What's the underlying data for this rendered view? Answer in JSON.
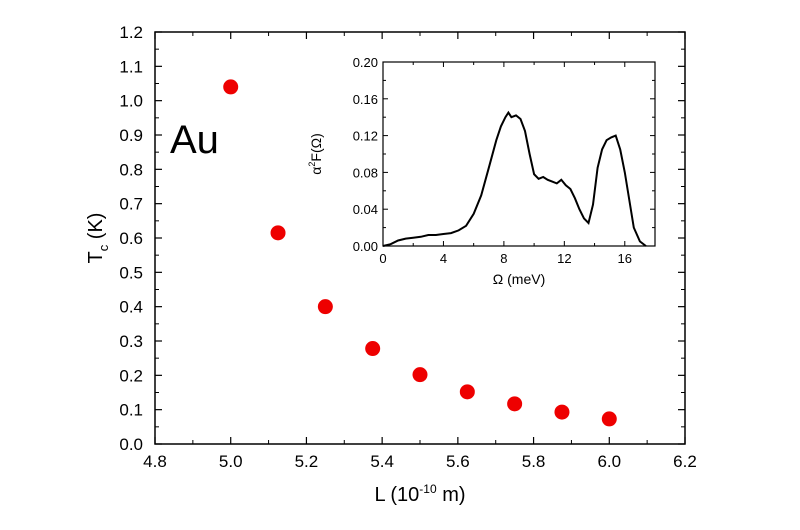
{
  "chart_data": [
    {
      "type": "scatter",
      "title": "",
      "annotation": "Au",
      "xlabel": {
        "main": "L  (10",
        "sup": "-10",
        "tail": " m)"
      },
      "ylabel": {
        "main": "T",
        "sub": "c",
        "tail": "  (K)"
      },
      "xlim": [
        4.8,
        6.2
      ],
      "ylim": [
        0.0,
        1.2
      ],
      "xticks": [
        "4.8",
        "5.0",
        "5.2",
        "5.4",
        "5.6",
        "5.8",
        "6.0",
        "6.2"
      ],
      "yticks": [
        "0.0",
        "0.1",
        "0.2",
        "0.3",
        "0.4",
        "0.5",
        "0.6",
        "0.7",
        "0.8",
        "0.9",
        "1.0",
        "1.1",
        "1.2"
      ],
      "marker_color": "#ee0000",
      "points": [
        {
          "x": 5.0,
          "y": 1.04
        },
        {
          "x": 5.125,
          "y": 0.615
        },
        {
          "x": 5.25,
          "y": 0.4
        },
        {
          "x": 5.375,
          "y": 0.278
        },
        {
          "x": 5.5,
          "y": 0.202
        },
        {
          "x": 5.625,
          "y": 0.152
        },
        {
          "x": 5.75,
          "y": 0.117
        },
        {
          "x": 5.875,
          "y": 0.093
        },
        {
          "x": 6.0,
          "y": 0.073
        }
      ]
    },
    {
      "type": "line",
      "title": "",
      "xlabel": "Ω  (meV)",
      "ylabel": {
        "pre": "α",
        "sup": "2",
        "post": "F(Ω)"
      },
      "xlim": [
        0,
        18
      ],
      "ylim": [
        0.0,
        0.2
      ],
      "xticks": [
        "0",
        "4",
        "8",
        "12",
        "16"
      ],
      "yticks": [
        "0.00",
        "0.04",
        "0.08",
        "0.12",
        "0.16",
        "0.20"
      ],
      "line_color": "#000000",
      "x": [
        0,
        0.5,
        1,
        1.5,
        2,
        2.5,
        3,
        3.5,
        4,
        4.5,
        5,
        5.5,
        6,
        6.5,
        7,
        7.5,
        7.8,
        8.1,
        8.3,
        8.5,
        8.8,
        9.1,
        9.4,
        9.7,
        10,
        10.3,
        10.6,
        10.9,
        11.2,
        11.5,
        11.8,
        12.1,
        12.4,
        12.7,
        13,
        13.3,
        13.6,
        13.9,
        14.2,
        14.5,
        14.8,
        15.1,
        15.4,
        15.7,
        16,
        16.3,
        16.6,
        17,
        17.4
      ],
      "y": [
        0.0,
        0.002,
        0.006,
        0.008,
        0.009,
        0.01,
        0.012,
        0.012,
        0.013,
        0.014,
        0.017,
        0.022,
        0.035,
        0.055,
        0.085,
        0.115,
        0.13,
        0.14,
        0.145,
        0.14,
        0.142,
        0.138,
        0.125,
        0.1,
        0.078,
        0.073,
        0.075,
        0.072,
        0.07,
        0.068,
        0.072,
        0.066,
        0.062,
        0.052,
        0.04,
        0.03,
        0.025,
        0.045,
        0.085,
        0.105,
        0.115,
        0.118,
        0.12,
        0.105,
        0.08,
        0.05,
        0.02,
        0.005,
        0.0
      ]
    }
  ]
}
